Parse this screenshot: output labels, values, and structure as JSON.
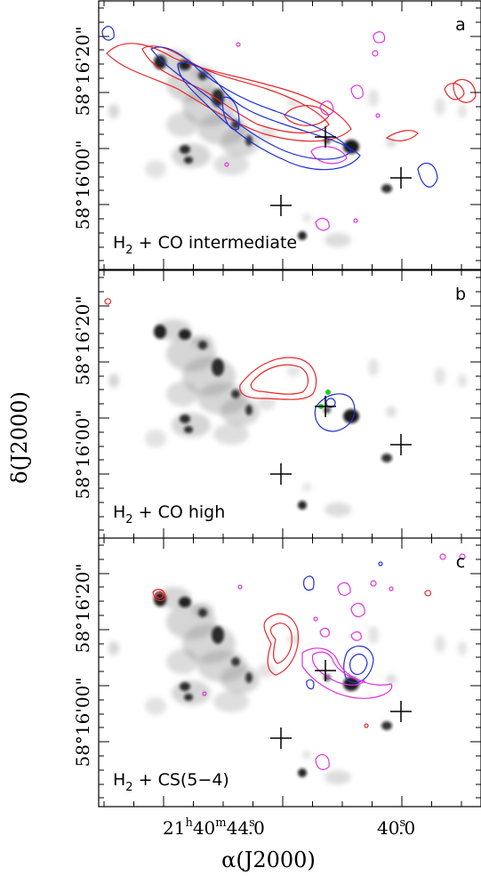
{
  "figure": {
    "xlabel": "α(J2000)",
    "ylabel": "δ(J2000)",
    "x_ticks": [
      {
        "label": "21ʰ40ᵐ44.ˢ0",
        "main": "21",
        "h": "h",
        "m_val": "40",
        "m": "m",
        "s_val": "44",
        "s": "s",
        "frac": ".0"
      },
      {
        "label": "40.ˢ0",
        "s_val": "40",
        "s": "s",
        "frac": ".0"
      }
    ],
    "y_ticks": [
      "58°16'20\"",
      "58°16'00\""
    ],
    "colors": {
      "co_red": "#e8262a",
      "co_blue": "#1f2fd6",
      "magenta": "#e030e0",
      "green": "#22cc22",
      "gray_emission": "#8a8a8a"
    }
  },
  "panels": [
    {
      "id": "a",
      "letter": "a",
      "label_main": "H",
      "label_sub": "2",
      "label_rest": " + CO intermediate"
    },
    {
      "id": "b",
      "letter": "b",
      "label_main": "H",
      "label_sub": "2",
      "label_rest": " + CO high"
    },
    {
      "id": "c",
      "letter": "c",
      "label_main": "H",
      "label_sub": "2",
      "label_rest": " + CS(5−4)"
    }
  ]
}
